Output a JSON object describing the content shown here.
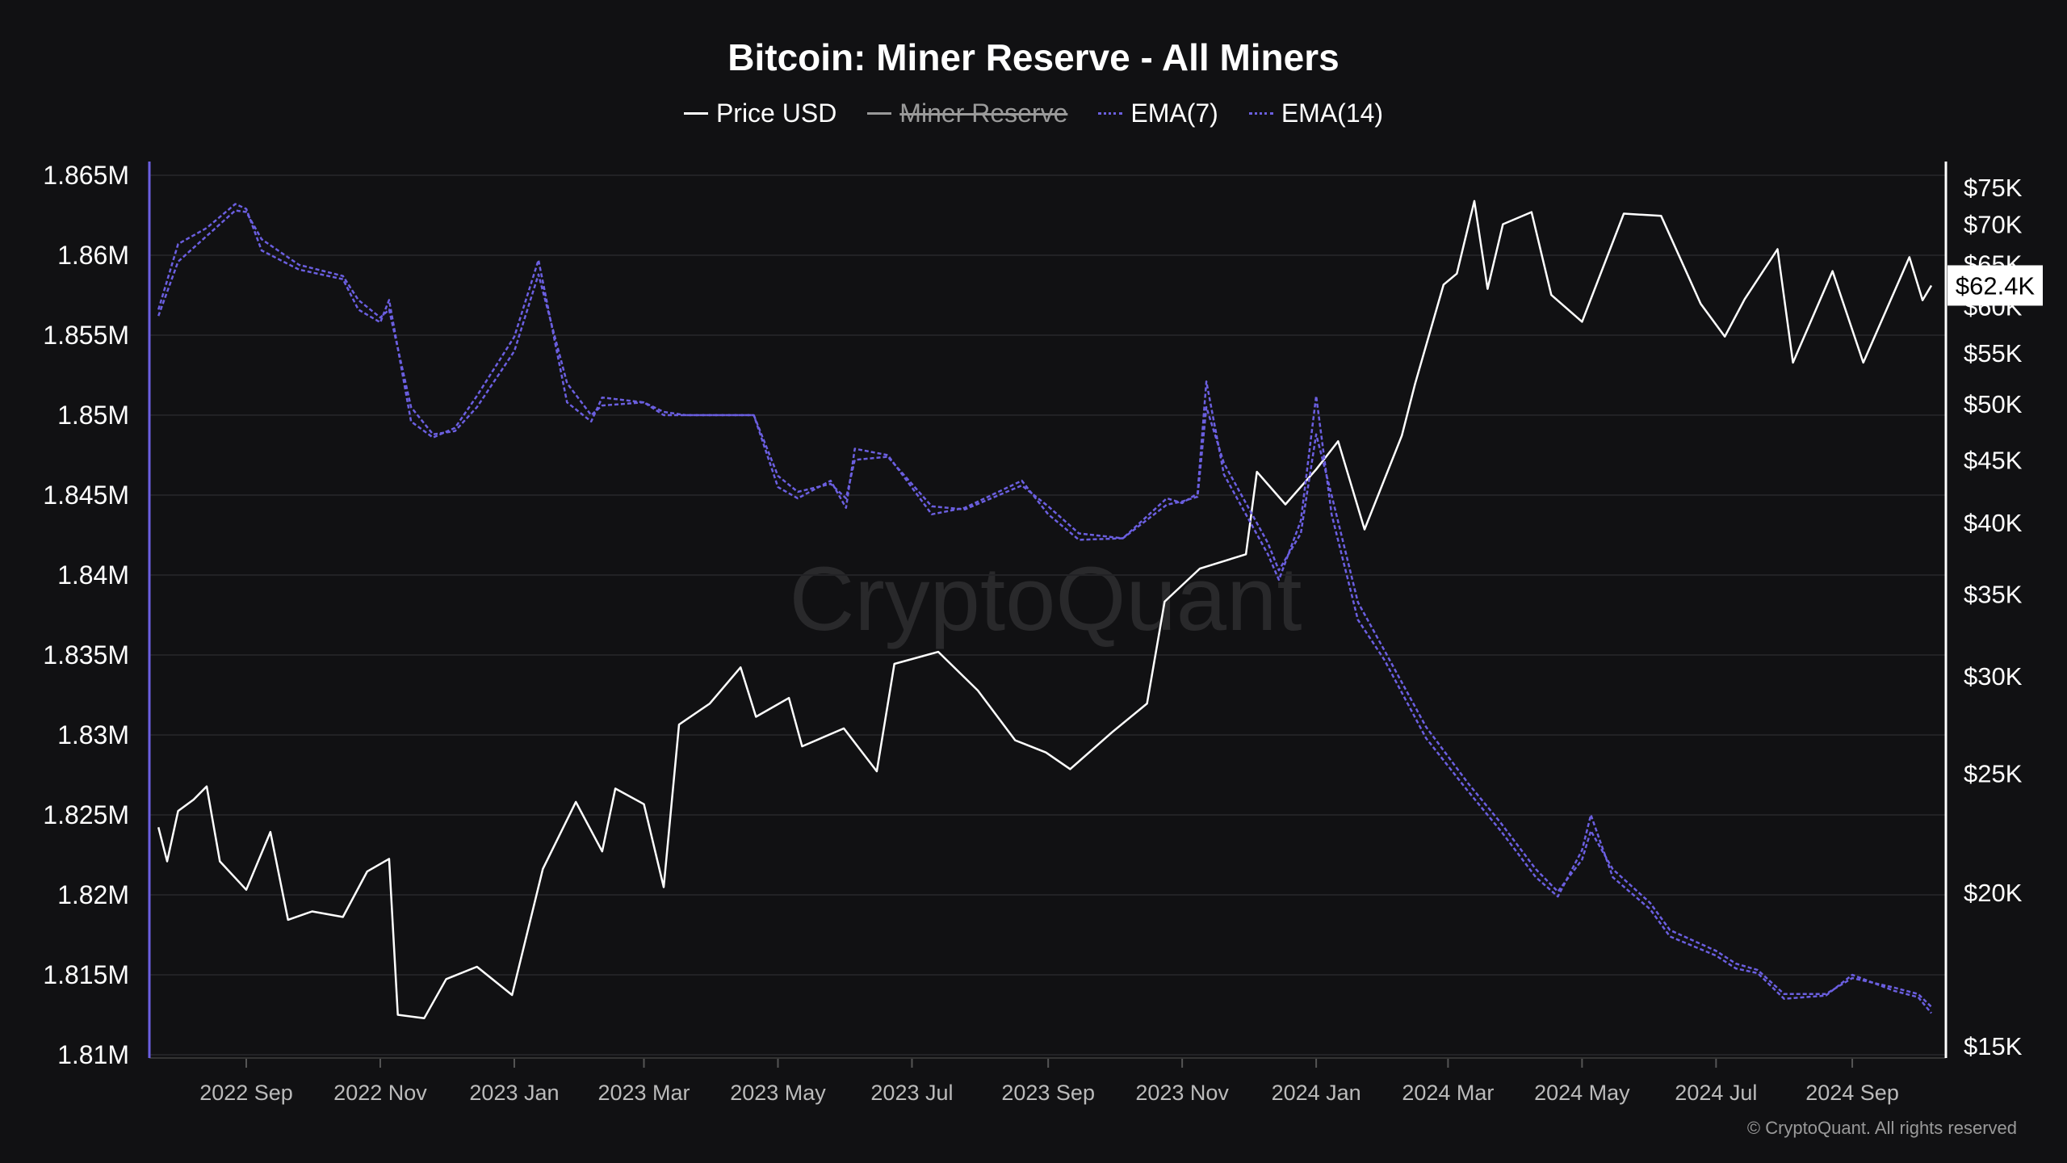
{
  "chart_data": {
    "type": "line",
    "title": "Bitcoin: Miner Reserve - All Miners",
    "legend": [
      {
        "name": "Price USD",
        "color": "#ffffff",
        "hidden": false
      },
      {
        "name": "Miner Reserve",
        "color": "#999999",
        "hidden": true
      },
      {
        "name": "EMA(7)",
        "color": "#6b5fe0",
        "hidden": false
      },
      {
        "name": "EMA(14)",
        "color": "#6b5fe0",
        "hidden": false
      }
    ],
    "legend_placement": "top-center",
    "grid": true,
    "watermark": "CryptoQuant",
    "copyright": "© CryptoQuant. All rights reserved",
    "x_ticks": [
      "2022 Sep",
      "2022 Nov",
      "2023 Jan",
      "2023 Mar",
      "2023 May",
      "2023 Jul",
      "2023 Sep",
      "2023 Nov",
      "2024 Jan",
      "2024 Mar",
      "2024 May",
      "2024 Jul",
      "2024 Sep"
    ],
    "x_tick_dates": [
      "2022-09-01",
      "2022-11-01",
      "2023-01-01",
      "2023-03-01",
      "2023-05-01",
      "2023-07-01",
      "2023-09-01",
      "2023-11-01",
      "2024-01-01",
      "2024-03-01",
      "2024-05-01",
      "2024-07-01",
      "2024-09-01"
    ],
    "left_axis": {
      "ylim": [
        1.81,
        1.865
      ],
      "unit": "M",
      "ticks": [
        "1.865M",
        "1.86M",
        "1.855M",
        "1.85M",
        "1.845M",
        "1.84M",
        "1.835M",
        "1.83M",
        "1.825M",
        "1.82M",
        "1.815M",
        "1.81M"
      ],
      "tick_values": [
        1.865,
        1.86,
        1.855,
        1.85,
        1.845,
        1.84,
        1.835,
        1.83,
        1.825,
        1.82,
        1.815,
        1.81
      ],
      "color": "#6b5fe0"
    },
    "right_axis": {
      "scale": "log",
      "ticks": [
        "$75K",
        "$70K",
        "$65K",
        "$60K",
        "$55K",
        "$50K",
        "$45K",
        "$40K",
        "$35K",
        "$30K",
        "$25K",
        "$20K",
        "$15K"
      ],
      "tick_values": [
        75,
        70,
        65,
        60,
        55,
        50,
        45,
        40,
        35,
        30,
        25,
        20,
        15
      ],
      "unit": "K USD"
    },
    "last_price_label": "$62.4K",
    "last_price": 62.4,
    "series": [
      {
        "name": "Price USD",
        "axis": "right",
        "color": "#ffffff",
        "x": [
          "2022-07-23",
          "2022-07-27",
          "2022-08-01",
          "2022-08-08",
          "2022-08-14",
          "2022-08-20",
          "2022-09-01",
          "2022-09-12",
          "2022-09-20",
          "2022-10-01",
          "2022-10-15",
          "2022-10-26",
          "2022-11-05",
          "2022-11-09",
          "2022-11-21",
          "2022-12-01",
          "2022-12-15",
          "2022-12-31",
          "2023-01-14",
          "2023-01-29",
          "2023-02-10",
          "2023-02-16",
          "2023-03-01",
          "2023-03-10",
          "2023-03-17",
          "2023-03-31",
          "2023-04-14",
          "2023-04-21",
          "2023-05-06",
          "2023-05-12",
          "2023-05-31",
          "2023-06-15",
          "2023-06-23",
          "2023-07-13",
          "2023-07-31",
          "2023-08-17",
          "2023-08-31",
          "2023-09-11",
          "2023-09-30",
          "2023-10-16",
          "2023-10-24",
          "2023-11-09",
          "2023-11-30",
          "2023-12-05",
          "2023-12-18",
          "2024-01-01",
          "2024-01-11",
          "2024-01-23",
          "2024-02-09",
          "2024-02-15",
          "2024-02-28",
          "2024-03-05",
          "2024-03-13",
          "2024-03-19",
          "2024-03-26",
          "2024-04-08",
          "2024-04-17",
          "2024-05-01",
          "2024-05-20",
          "2024-06-06",
          "2024-06-24",
          "2024-07-05",
          "2024-07-14",
          "2024-07-29",
          "2024-08-05",
          "2024-08-23",
          "2024-09-06",
          "2024-09-27",
          "2024-10-03",
          "2024-10-07"
        ],
        "y": [
          22.6,
          21.2,
          23.3,
          23.8,
          24.4,
          21.2,
          20.1,
          22.4,
          19.0,
          19.3,
          19.1,
          20.8,
          21.3,
          15.9,
          15.8,
          17.0,
          17.4,
          16.5,
          20.9,
          23.7,
          21.6,
          24.3,
          23.6,
          20.2,
          27.4,
          28.5,
          30.5,
          27.8,
          28.8,
          26.3,
          27.2,
          25.1,
          30.7,
          31.4,
          29.2,
          26.6,
          26.0,
          25.2,
          27.0,
          28.5,
          34.5,
          36.7,
          37.7,
          44.0,
          41.4,
          44.2,
          46.6,
          39.5,
          47.1,
          51.9,
          62.5,
          63.8,
          73.1,
          62.0,
          70.0,
          71.6,
          61.3,
          58.3,
          71.4,
          71.1,
          60.3,
          56.7,
          60.8,
          66.8,
          54.0,
          64.1,
          54.0,
          65.8,
          60.7,
          62.4
        ]
      },
      {
        "name": "EMA(7)",
        "axis": "left",
        "color": "#6b5fe0",
        "x": [
          "2022-07-23",
          "2022-08-01",
          "2022-08-14",
          "2022-08-27",
          "2022-09-01",
          "2022-09-08",
          "2022-09-25",
          "2022-10-15",
          "2022-10-22",
          "2022-11-01",
          "2022-11-05",
          "2022-11-15",
          "2022-11-25",
          "2022-12-05",
          "2022-12-15",
          "2023-01-01",
          "2023-01-12",
          "2023-01-25",
          "2023-02-05",
          "2023-02-10",
          "2023-03-01",
          "2023-03-10",
          "2023-03-20",
          "2023-04-20",
          "2023-05-01",
          "2023-05-10",
          "2023-05-25",
          "2023-06-01",
          "2023-06-05",
          "2023-06-20",
          "2023-07-10",
          "2023-07-25",
          "2023-08-20",
          "2023-09-01",
          "2023-09-15",
          "2023-10-05",
          "2023-10-25",
          "2023-11-01",
          "2023-11-08",
          "2023-11-12",
          "2023-11-20",
          "2023-12-10",
          "2023-12-15",
          "2023-12-25",
          "2024-01-01",
          "2024-01-08",
          "2024-01-20",
          "2024-02-01",
          "2024-02-20",
          "2024-03-10",
          "2024-03-25",
          "2024-04-10",
          "2024-04-20",
          "2024-05-01",
          "2024-05-05",
          "2024-05-15",
          "2024-06-01",
          "2024-06-10",
          "2024-07-01",
          "2024-07-10",
          "2024-07-20",
          "2024-08-01",
          "2024-08-20",
          "2024-09-01",
          "2024-09-20",
          "2024-10-01",
          "2024-10-07"
        ],
        "y": [
          1.8566,
          1.8607,
          1.8617,
          1.8632,
          1.8629,
          1.8603,
          1.8591,
          1.8585,
          1.8566,
          1.8558,
          1.8572,
          1.8496,
          1.8486,
          1.8492,
          1.8512,
          1.8549,
          1.8597,
          1.8508,
          1.8496,
          1.8511,
          1.8508,
          1.85,
          1.85,
          1.85,
          1.8455,
          1.8448,
          1.8459,
          1.8442,
          1.8479,
          1.8475,
          1.8438,
          1.8442,
          1.8459,
          1.8438,
          1.8422,
          1.8423,
          1.8448,
          1.8445,
          1.8451,
          1.8521,
          1.8463,
          1.8413,
          1.8397,
          1.8434,
          1.8512,
          1.8438,
          1.8372,
          1.8347,
          1.8298,
          1.8265,
          1.824,
          1.8211,
          1.8199,
          1.8228,
          1.825,
          1.8211,
          1.8191,
          1.8174,
          1.8162,
          1.8154,
          1.8151,
          1.8135,
          1.8137,
          1.815,
          1.814,
          1.8136,
          1.8126
        ]
      },
      {
        "name": "EMA(14)",
        "axis": "left",
        "color": "#6b5fe0",
        "x": [
          "2022-07-23",
          "2022-08-01",
          "2022-08-14",
          "2022-08-27",
          "2022-09-01",
          "2022-09-08",
          "2022-09-25",
          "2022-10-15",
          "2022-10-22",
          "2022-11-01",
          "2022-11-05",
          "2022-11-15",
          "2022-11-25",
          "2022-12-05",
          "2022-12-15",
          "2023-01-01",
          "2023-01-12",
          "2023-01-25",
          "2023-02-05",
          "2023-02-10",
          "2023-03-01",
          "2023-03-10",
          "2023-03-20",
          "2023-04-20",
          "2023-05-01",
          "2023-05-10",
          "2023-05-25",
          "2023-06-01",
          "2023-06-05",
          "2023-06-20",
          "2023-07-10",
          "2023-07-25",
          "2023-08-20",
          "2023-09-01",
          "2023-09-15",
          "2023-10-05",
          "2023-10-25",
          "2023-11-01",
          "2023-11-08",
          "2023-11-12",
          "2023-11-20",
          "2023-12-10",
          "2023-12-15",
          "2023-12-25",
          "2024-01-01",
          "2024-01-08",
          "2024-01-20",
          "2024-02-01",
          "2024-02-20",
          "2024-03-10",
          "2024-03-25",
          "2024-04-10",
          "2024-04-20",
          "2024-05-01",
          "2024-05-05",
          "2024-05-15",
          "2024-06-01",
          "2024-06-10",
          "2024-07-01",
          "2024-07-10",
          "2024-07-20",
          "2024-08-01",
          "2024-08-20",
          "2024-09-01",
          "2024-09-20",
          "2024-10-01",
          "2024-10-07"
        ],
        "y": [
          1.8562,
          1.8596,
          1.8612,
          1.8628,
          1.8627,
          1.861,
          1.8594,
          1.8587,
          1.8572,
          1.8561,
          1.8566,
          1.8505,
          1.8488,
          1.849,
          1.8505,
          1.854,
          1.8588,
          1.852,
          1.85,
          1.8506,
          1.8508,
          1.8502,
          1.85,
          1.85,
          1.8462,
          1.8452,
          1.8457,
          1.8448,
          1.8472,
          1.8474,
          1.8443,
          1.8441,
          1.8456,
          1.8443,
          1.8426,
          1.8423,
          1.8444,
          1.8446,
          1.8449,
          1.8505,
          1.847,
          1.842,
          1.8403,
          1.8426,
          1.8488,
          1.845,
          1.8383,
          1.8353,
          1.8305,
          1.827,
          1.8245,
          1.8216,
          1.8202,
          1.8222,
          1.824,
          1.8216,
          1.8195,
          1.8178,
          1.8165,
          1.8157,
          1.8153,
          1.8138,
          1.8138,
          1.8148,
          1.8142,
          1.8138,
          1.813
        ]
      }
    ]
  }
}
